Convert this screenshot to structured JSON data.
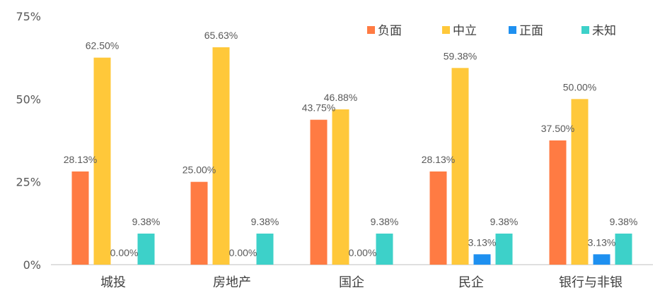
{
  "chart_data": {
    "type": "bar",
    "categories": [
      "城投",
      "房地产",
      "国企",
      "民企",
      "银行与非银"
    ],
    "series": [
      {
        "name": "负面",
        "color": "#FF7B43",
        "values": [
          28.13,
          25.0,
          43.75,
          28.13,
          37.5
        ]
      },
      {
        "name": "中立",
        "color": "#FFC83A",
        "values": [
          62.5,
          65.63,
          46.88,
          59.38,
          50.0
        ]
      },
      {
        "name": "正面",
        "color": "#1E90F0",
        "values": [
          0.0,
          0.0,
          0.0,
          3.13,
          3.13
        ]
      },
      {
        "name": "未知",
        "color": "#3DD1C9",
        "values": [
          9.38,
          9.38,
          9.38,
          9.38,
          9.38
        ]
      }
    ],
    "yticks": [
      "0%",
      "25%",
      "50%",
      "75%"
    ],
    "ytick_values": [
      0,
      25,
      50,
      75
    ],
    "ylim": [
      0,
      75
    ],
    "legend_position": "top-right",
    "grid": false,
    "axis_color": "#BFBFBF",
    "value_suffix": "%"
  }
}
